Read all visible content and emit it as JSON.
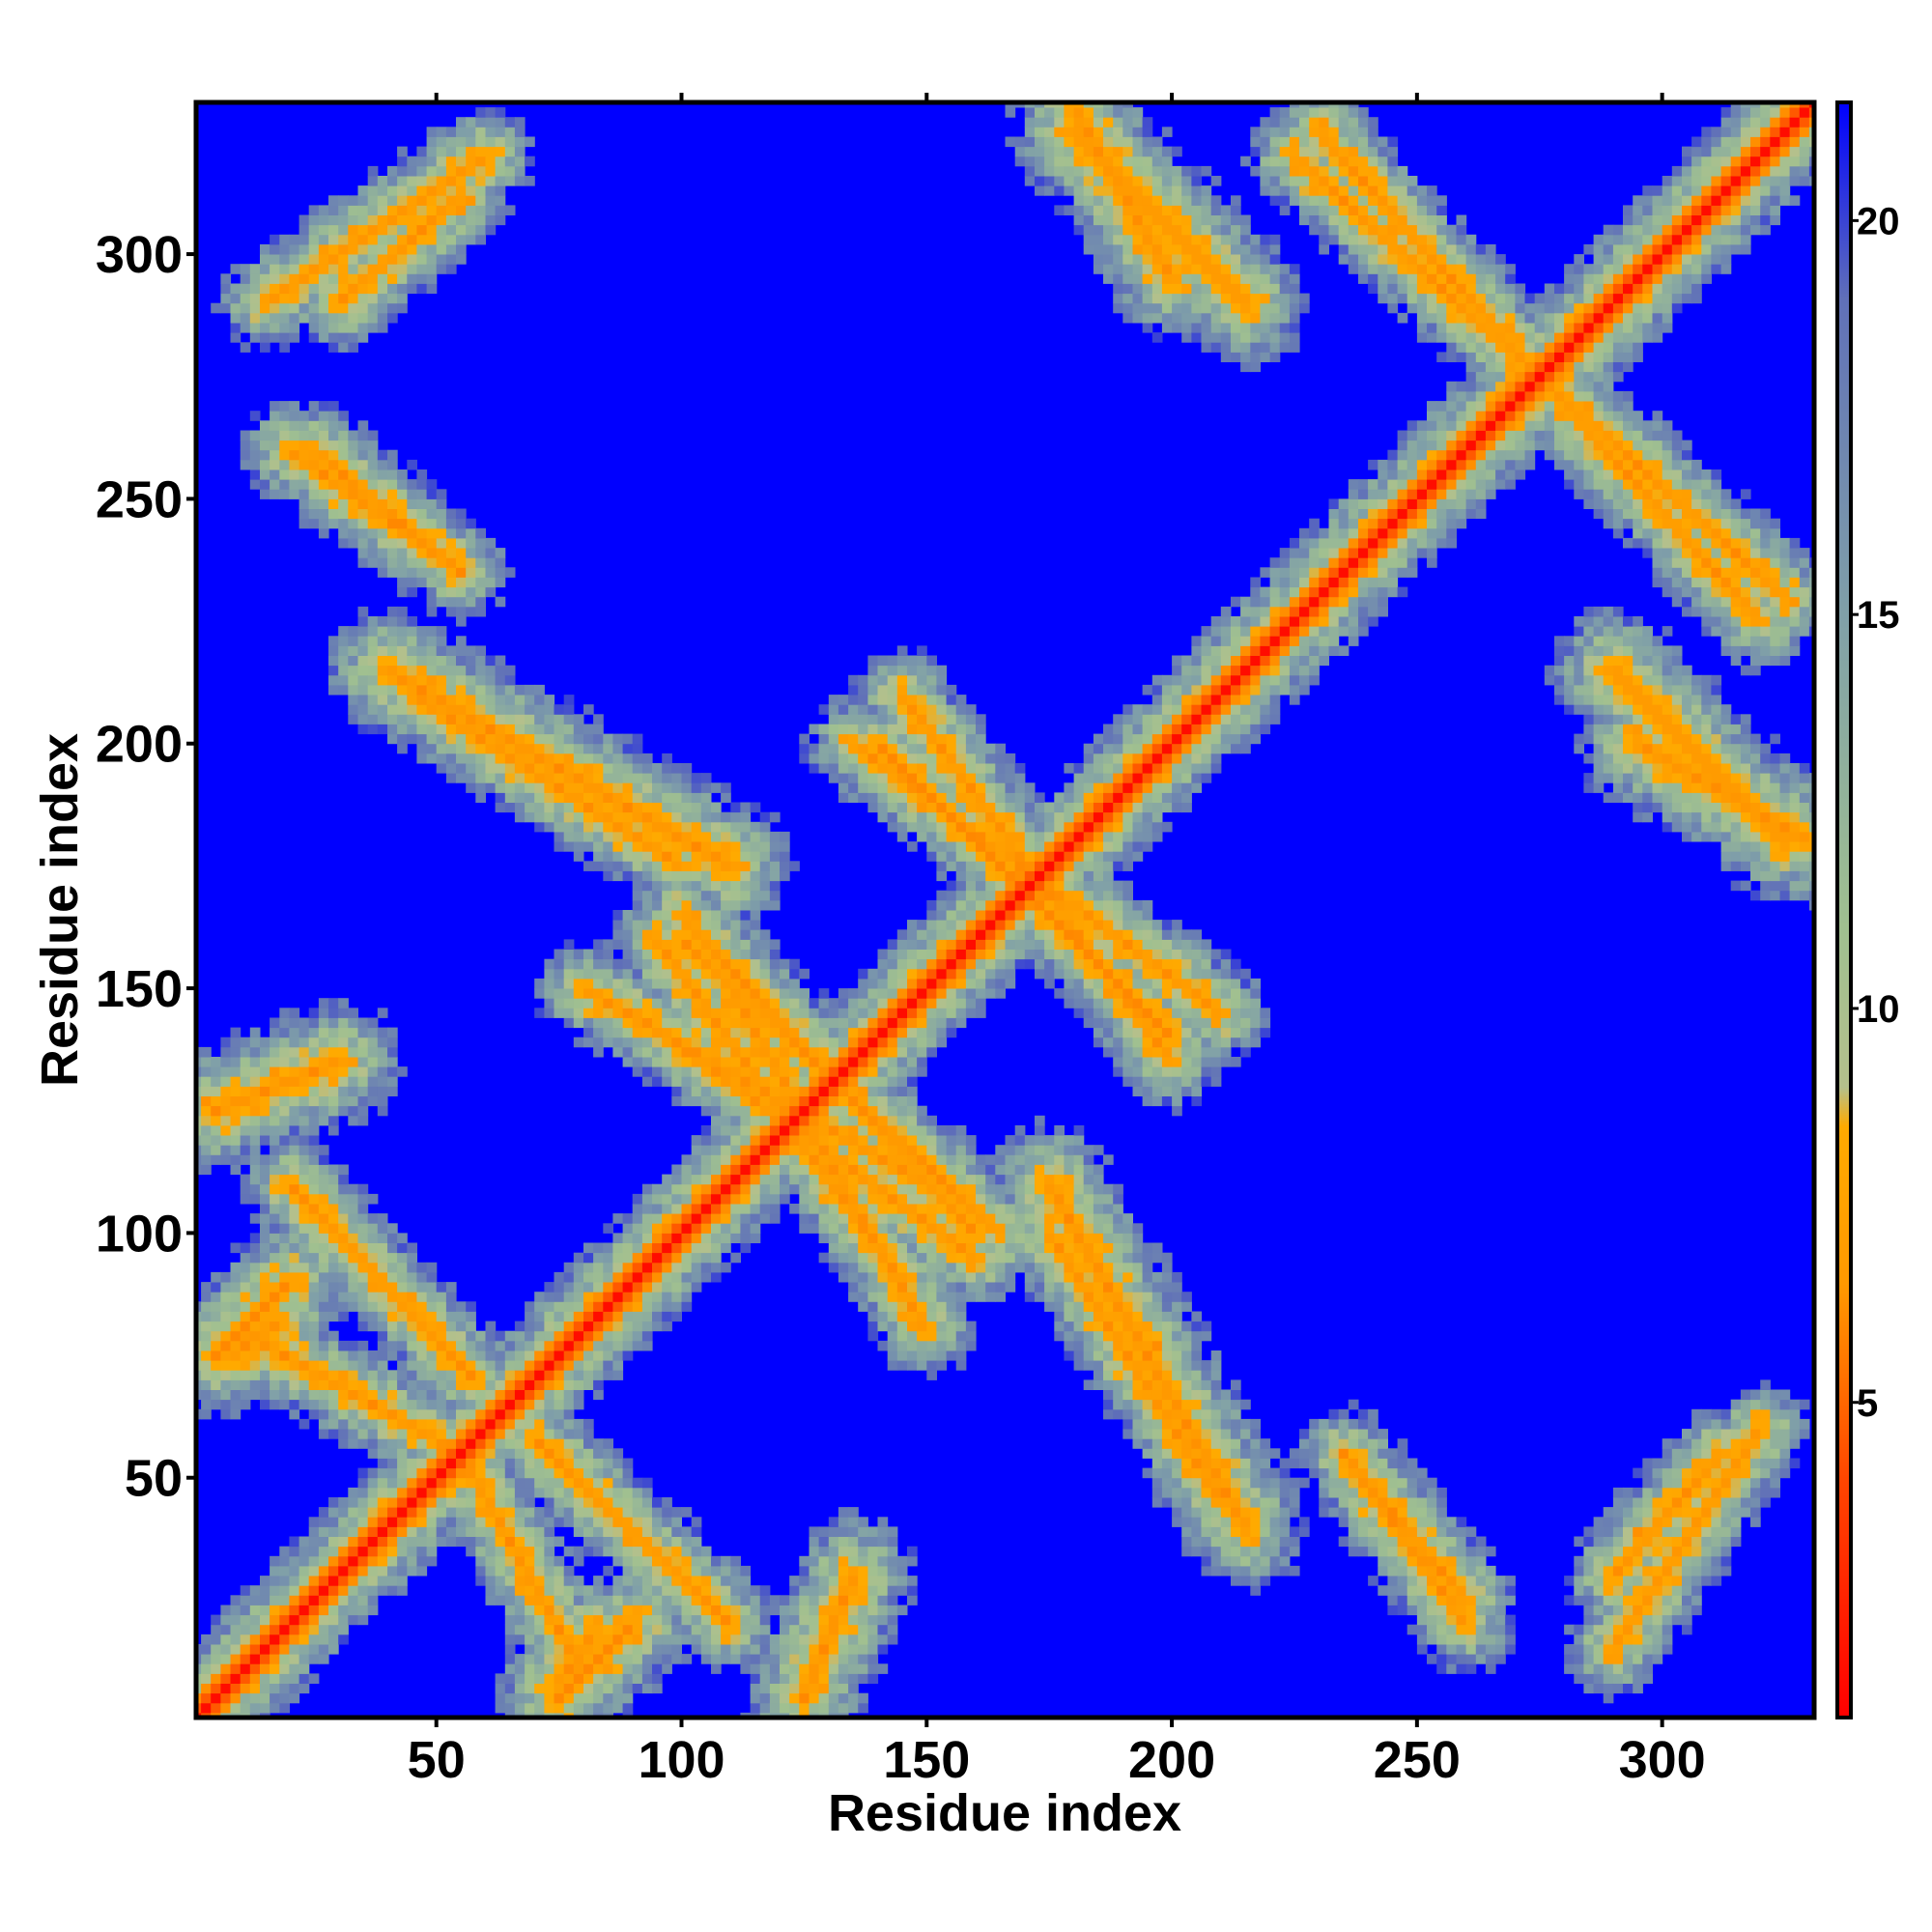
{
  "chart_data": {
    "type": "heatmap",
    "title": "",
    "xlabel": "Residue index",
    "ylabel": "Residue index",
    "xlim": [
      1,
      331
    ],
    "ylim": [
      1,
      331
    ],
    "x_ticks": [
      50,
      100,
      150,
      200,
      250,
      300
    ],
    "y_ticks": [
      50,
      100,
      150,
      200,
      250,
      300
    ],
    "x_tick_labels": [
      "50",
      "100",
      "150",
      "200",
      "250",
      "300"
    ],
    "y_tick_labels": [
      "50",
      "100",
      "150",
      "200",
      "250",
      "300"
    ],
    "colorbar": {
      "range": [
        1,
        21.5
      ],
      "ticks": [
        5,
        10,
        15,
        20
      ],
      "tick_labels": [
        "5",
        "10",
        "15",
        "20"
      ],
      "colors": [
        {
          "value": 1,
          "color": "#ff0000"
        },
        {
          "value": 4,
          "color": "#ff4500"
        },
        {
          "value": 6.5,
          "color": "#ff9900"
        },
        {
          "value": 8.5,
          "color": "#ffaa00"
        },
        {
          "value": 9,
          "color": "#b4c08c"
        },
        {
          "value": 11,
          "color": "#a0c090"
        },
        {
          "value": 15,
          "color": "#80a0a8"
        },
        {
          "value": 19,
          "color": "#6070b8"
        },
        {
          "value": 21.5,
          "color": "#0000ff"
        }
      ],
      "background_value": 21.5
    },
    "description_of_values": "Pairwise residue distance map; main diagonal low values (red) with off-diagonal contact bands",
    "diagonal": {
      "from": 1,
      "to": 331
    },
    "contact_bands": [
      {
        "x": [
          20,
          58
        ],
        "y": [
          110,
          70
        ],
        "orientation": "anti"
      },
      {
        "x": [
          55,
          80
        ],
        "y": [
          55,
          10
        ],
        "orientation": "anti"
      },
      {
        "x": [
          75,
          82
        ],
        "y": [
          8,
          18
        ],
        "orientation": "blob"
      },
      {
        "x": [
          80,
          150
        ],
        "y": [
          150,
          110
        ],
        "orientation": "anti"
      },
      {
        "x": [
          95,
          145
        ],
        "y": [
          160,
          90
        ],
        "orientation": "anti"
      },
      {
        "x": [
          100,
          160
        ],
        "y": [
          165,
          100
        ],
        "orientation": "anti"
      },
      {
        "x": [
          135,
          210
        ],
        "y": [
          200,
          145
        ],
        "orientation": "anti"
      },
      {
        "x": [
          140,
          180
        ],
        "y": [
          200,
          160
        ],
        "orientation": "parallel"
      },
      {
        "x": [
          175,
          210
        ],
        "y": [
          100,
          45
        ],
        "orientation": "anti"
      },
      {
        "x": [
          235,
          260
        ],
        "y": [
          55,
          25
        ],
        "orientation": "anti"
      },
      {
        "x": [
          290,
          312
        ],
        "y": [
          30,
          55
        ],
        "orientation": "parallel"
      },
      {
        "x": [
          230,
          320
        ],
        "y": [
          325,
          225
        ],
        "orientation": "anti"
      },
      {
        "x": [
          15,
          60
        ],
        "y": [
          290,
          320
        ],
        "orientation": "parallel"
      },
      {
        "x": [
          20,
          55
        ],
        "y": [
          260,
          235
        ],
        "orientation": "anti"
      },
      {
        "x": [
          180,
          200
        ],
        "y": [
          330,
          295
        ],
        "orientation": "blob"
      },
      {
        "x": [
          40,
          110
        ],
        "y": [
          215,
          175
        ],
        "orientation": "blob"
      },
      {
        "x": [
          290,
          325
        ],
        "y": [
          215,
          180
        ],
        "orientation": "blob"
      },
      {
        "x": [
          5,
          30
        ],
        "y": [
          125,
          135
        ],
        "orientation": "blob"
      },
      {
        "x": [
          5,
          20
        ],
        "y": [
          75,
          90
        ],
        "orientation": "blob"
      }
    ]
  }
}
